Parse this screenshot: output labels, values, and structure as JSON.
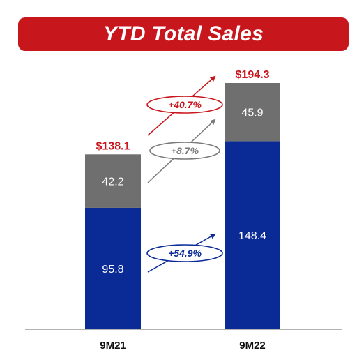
{
  "chart_data": {
    "type": "bar",
    "stacked": true,
    "title": "YTD Total Sales",
    "categories": [
      "9M21",
      "9M22"
    ],
    "series": [
      {
        "values": [
          95.8,
          148.4
        ],
        "color": "#0a2a96"
      },
      {
        "values": [
          42.2,
          45.9
        ],
        "color": "#6f6f6f"
      }
    ],
    "totals": [
      "$138.1",
      "$194.3"
    ],
    "total_values": [
      138.1,
      194.3
    ],
    "growth_labels": [
      {
        "text": "+40.7%",
        "color": "#c8161d"
      },
      {
        "text": "+8.7%",
        "color": "#7a7a7a"
      },
      {
        "text": "+54.9%",
        "color": "#0a2a96"
      }
    ],
    "ylim": [
      0,
      194.3
    ],
    "grid": false,
    "legend": "none"
  }
}
